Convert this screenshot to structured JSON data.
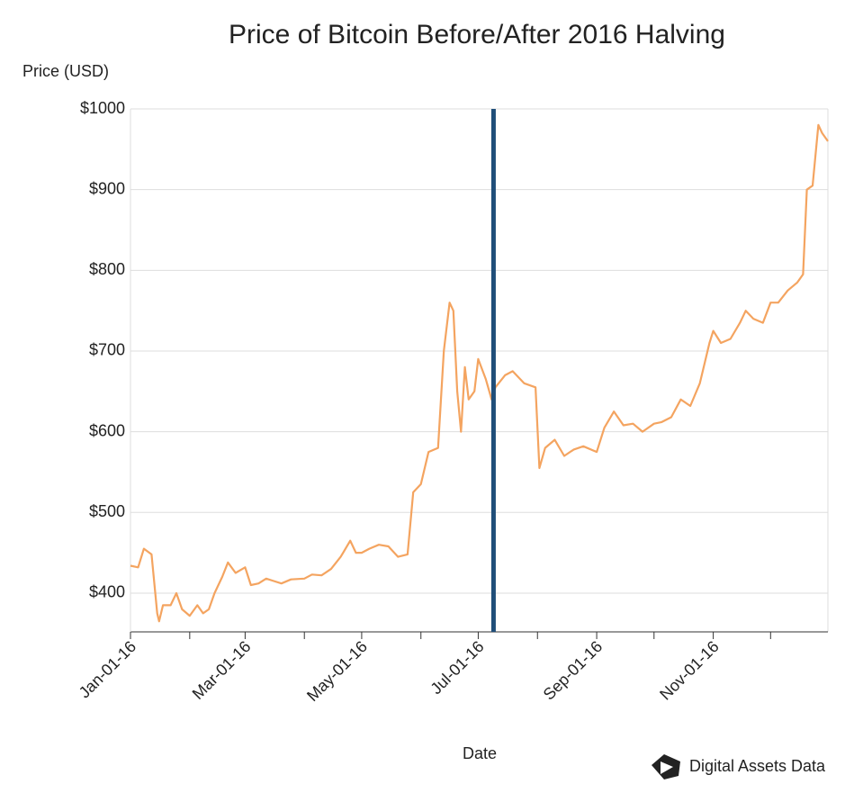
{
  "chart_data": {
    "type": "line",
    "title": "Price of Bitcoin Before/After 2016 Halving",
    "y_label": "Price (USD)",
    "x_label": "Date",
    "watermark": "Digital Assets Data",
    "x": [
      "2016-01-01",
      "2016-01-05",
      "2016-01-08",
      "2016-01-12",
      "2016-01-15",
      "2016-01-16",
      "2016-01-18",
      "2016-01-22",
      "2016-01-25",
      "2016-01-28",
      "2016-02-01",
      "2016-02-05",
      "2016-02-08",
      "2016-02-11",
      "2016-02-14",
      "2016-02-18",
      "2016-02-21",
      "2016-02-25",
      "2016-03-01",
      "2016-03-04",
      "2016-03-08",
      "2016-03-12",
      "2016-03-16",
      "2016-03-20",
      "2016-03-25",
      "2016-04-01",
      "2016-04-05",
      "2016-04-10",
      "2016-04-15",
      "2016-04-20",
      "2016-04-25",
      "2016-04-28",
      "2016-05-01",
      "2016-05-05",
      "2016-05-10",
      "2016-05-15",
      "2016-05-20",
      "2016-05-25",
      "2016-05-28",
      "2016-06-01",
      "2016-06-05",
      "2016-06-10",
      "2016-06-13",
      "2016-06-16",
      "2016-06-18",
      "2016-06-20",
      "2016-06-22",
      "2016-06-24",
      "2016-06-26",
      "2016-06-29",
      "2016-07-01",
      "2016-07-05",
      "2016-07-08",
      "2016-07-10",
      "2016-07-15",
      "2016-07-19",
      "2016-07-25",
      "2016-07-31",
      "2016-08-02",
      "2016-08-05",
      "2016-08-10",
      "2016-08-15",
      "2016-08-20",
      "2016-08-25",
      "2016-09-01",
      "2016-09-05",
      "2016-09-10",
      "2016-09-15",
      "2016-09-20",
      "2016-09-25",
      "2016-10-01",
      "2016-10-05",
      "2016-10-10",
      "2016-10-15",
      "2016-10-20",
      "2016-10-25",
      "2016-10-30",
      "2016-11-01",
      "2016-11-05",
      "2016-11-10",
      "2016-11-15",
      "2016-11-18",
      "2016-11-22",
      "2016-11-27",
      "2016-12-01",
      "2016-12-05",
      "2016-12-10",
      "2016-12-15",
      "2016-12-18",
      "2016-12-20",
      "2016-12-23",
      "2016-12-26",
      "2016-12-28",
      "2016-12-31"
    ],
    "series": [
      {
        "name": "Price",
        "color": "#f4a460",
        "values": [
          434,
          432,
          455,
          448,
          375,
          365,
          385,
          385,
          400,
          380,
          372,
          385,
          375,
          380,
          400,
          420,
          438,
          425,
          432,
          410,
          412,
          418,
          415,
          412,
          417,
          418,
          423,
          422,
          430,
          445,
          465,
          450,
          450,
          455,
          460,
          458,
          445,
          448,
          525,
          535,
          575,
          580,
          700,
          760,
          750,
          650,
          600,
          680,
          640,
          650,
          690,
          665,
          640,
          655,
          670,
          675,
          660,
          655,
          555,
          580,
          590,
          570,
          578,
          582,
          575,
          605,
          625,
          608,
          610,
          600,
          610,
          612,
          618,
          640,
          632,
          660,
          710,
          725,
          710,
          715,
          735,
          750,
          740,
          735,
          760,
          760,
          775,
          785,
          795,
          900,
          905,
          980,
          970,
          960
        ]
      }
    ],
    "halving_date": "2016-07-09",
    "halving_color": "#1f4e79",
    "xlim": [
      "2016-01-01",
      "2016-12-31"
    ],
    "xticks": [
      {
        "value": "2016-01-01",
        "label": "Jan-01-16"
      },
      {
        "value": "2016-03-01",
        "label": "Mar-01-16"
      },
      {
        "value": "2016-05-01",
        "label": "May-01-16"
      },
      {
        "value": "2016-07-01",
        "label": "Jul-01-16"
      },
      {
        "value": "2016-09-01",
        "label": "Sep-01-16"
      },
      {
        "value": "2016-11-01",
        "label": "Nov-01-16"
      }
    ],
    "xminorticks": [
      "2016-02-01",
      "2016-04-01",
      "2016-06-01",
      "2016-08-01",
      "2016-10-01",
      "2016-12-01"
    ],
    "ylim": [
      352,
      1000
    ],
    "yticks": [
      {
        "value": 400,
        "label": "$400"
      },
      {
        "value": 500,
        "label": "$500"
      },
      {
        "value": 600,
        "label": "$600"
      },
      {
        "value": 700,
        "label": "$700"
      },
      {
        "value": 800,
        "label": "$800"
      },
      {
        "value": 900,
        "label": "$900"
      },
      {
        "value": 1000,
        "label": "$1000"
      }
    ],
    "grid": true
  }
}
